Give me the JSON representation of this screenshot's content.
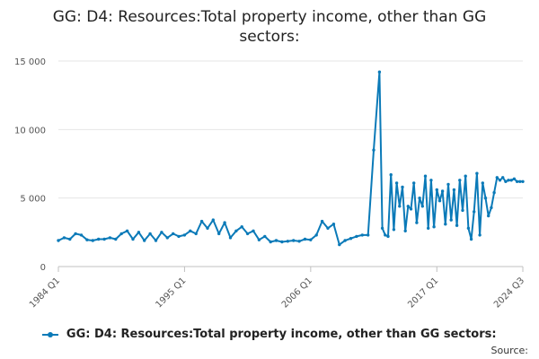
{
  "title_line1": "GG: D4: Resources:Total property income, other than GG",
  "title_line2": "sectors:",
  "source_label": "Source:",
  "colors": {
    "series": "#0b7ab8",
    "grid": "#e6e6e6",
    "axis": "#c0c0c0"
  },
  "chart_data": {
    "type": "line",
    "title": "GG: D4: Resources:Total property income, other than GG sectors:",
    "xlabel": "",
    "ylabel": "",
    "ylim": [
      0,
      15000
    ],
    "yticks": [
      0,
      5000,
      10000,
      15000
    ],
    "ytick_labels": [
      "0",
      "5 000",
      "10 000",
      "15 000"
    ],
    "xticks": [
      "1984 Q1",
      "1995 Q1",
      "2006 Q1",
      "2017 Q1",
      "2024 Q3"
    ],
    "x_range": [
      "1984 Q1",
      "2024 Q3"
    ],
    "grid": true,
    "legend_position": "bottom",
    "series": [
      {
        "name": "GG: D4: Resources:Total property income, other than GG sectors:",
        "x": [
          "1984 Q1",
          "1984 Q3",
          "1985 Q1",
          "1985 Q3",
          "1986 Q1",
          "1986 Q3",
          "1987 Q1",
          "1987 Q3",
          "1988 Q1",
          "1988 Q3",
          "1989 Q1",
          "1989 Q3",
          "1990 Q1",
          "1990 Q3",
          "1991 Q1",
          "1991 Q3",
          "1992 Q1",
          "1992 Q3",
          "1993 Q1",
          "1993 Q3",
          "1994 Q1",
          "1994 Q3",
          "1995 Q1",
          "1995 Q3",
          "1996 Q1",
          "1996 Q3",
          "1997 Q1",
          "1997 Q3",
          "1998 Q1",
          "1998 Q3",
          "1999 Q1",
          "1999 Q3",
          "2000 Q1",
          "2000 Q3",
          "2001 Q1",
          "2001 Q3",
          "2002 Q1",
          "2002 Q3",
          "2003 Q1",
          "2003 Q3",
          "2004 Q1",
          "2004 Q3",
          "2005 Q1",
          "2005 Q3",
          "2006 Q1",
          "2006 Q3",
          "2007 Q1",
          "2007 Q3",
          "2008 Q1",
          "2008 Q3",
          "2009 Q1",
          "2009 Q3",
          "2010 Q1",
          "2010 Q3",
          "2011 Q1",
          "2011 Q3",
          "2012 Q1",
          "2012 Q2",
          "2012 Q3",
          "2012 Q4",
          "2013 Q1",
          "2013 Q2",
          "2013 Q3",
          "2013 Q4",
          "2014 Q1",
          "2014 Q2",
          "2014 Q3",
          "2014 Q4",
          "2015 Q1",
          "2015 Q2",
          "2015 Q3",
          "2015 Q4",
          "2016 Q1",
          "2016 Q2",
          "2016 Q3",
          "2016 Q4",
          "2017 Q1",
          "2017 Q2",
          "2017 Q3",
          "2017 Q4",
          "2018 Q1",
          "2018 Q2",
          "2018 Q3",
          "2018 Q4",
          "2019 Q1",
          "2019 Q2",
          "2019 Q3",
          "2019 Q4",
          "2020 Q1",
          "2020 Q2",
          "2020 Q3",
          "2020 Q4",
          "2021 Q1",
          "2021 Q2",
          "2021 Q3",
          "2021 Q4",
          "2022 Q1",
          "2022 Q2",
          "2022 Q3",
          "2022 Q4",
          "2023 Q1",
          "2023 Q2",
          "2023 Q3",
          "2023 Q4",
          "2024 Q1",
          "2024 Q2",
          "2024 Q3"
        ],
        "values": [
          1900,
          2100,
          2000,
          2400,
          2300,
          1950,
          1900,
          2000,
          2000,
          2100,
          2000,
          2400,
          2600,
          2000,
          2500,
          1900,
          2400,
          1900,
          2500,
          2100,
          2400,
          2200,
          2300,
          2600,
          2400,
          3300,
          2800,
          3400,
          2400,
          3200,
          2100,
          2600,
          2900,
          2400,
          2600,
          1950,
          2200,
          1800,
          1900,
          1800,
          1850,
          1900,
          1850,
          2000,
          1950,
          2300,
          3300,
          2800,
          3100,
          1600,
          1900,
          2050,
          2200,
          2300,
          2300,
          8500,
          14200,
          2800,
          2300,
          2200,
          6700,
          2700,
          6100,
          4400,
          5800,
          2600,
          4400,
          4200,
          6100,
          3200,
          5000,
          4400,
          6600,
          2800,
          6300,
          2900,
          5600,
          4800,
          5500,
          3100,
          6000,
          3400,
          5600,
          3000,
          6300,
          4100,
          6600,
          2800,
          2000,
          4000,
          6800,
          2300,
          6100,
          5000,
          3700,
          4300,
          5400,
          6500,
          6300,
          6500,
          6200,
          6300,
          6300,
          6400,
          6200,
          6200,
          6200
        ]
      }
    ]
  }
}
